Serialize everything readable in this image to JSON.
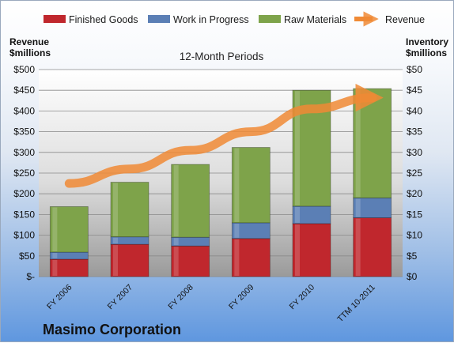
{
  "chart_data": {
    "type": "bar",
    "subtitle": "12-Month Periods",
    "company": "Masimo Corporation",
    "categories": [
      "FY 2006",
      "FY 2007",
      "FY 2008",
      "FY 2009",
      "FY 2010",
      "TTM 10-2011"
    ],
    "series": [
      {
        "name": "Finished Goods",
        "axis": "right",
        "stack": true,
        "color": "#c0272d",
        "values": [
          4.2,
          7.8,
          7.4,
          9.2,
          12.8,
          14.2
        ]
      },
      {
        "name": "Work in Progress",
        "axis": "right",
        "stack": true,
        "color": "#5b7fb5",
        "values": [
          1.7,
          1.8,
          2.1,
          3.8,
          4.2,
          4.8
        ]
      },
      {
        "name": "Raw Materials",
        "axis": "right",
        "stack": true,
        "color": "#7ea34a",
        "values": [
          11.0,
          13.2,
          17.6,
          18.2,
          28.0,
          26.4
        ]
      },
      {
        "name": "Revenue",
        "axis": "left",
        "type": "line",
        "color": "#f08a35",
        "values": [
          225,
          260,
          305,
          350,
          405,
          432
        ]
      }
    ],
    "yaxis_left": {
      "title": [
        "Revenue",
        "$millions"
      ],
      "min": 0,
      "max": 500,
      "step": 50,
      "tick_labels": [
        "$-",
        "$50",
        "$100",
        "$150",
        "$200",
        "$250",
        "$300",
        "$350",
        "$400",
        "$450",
        "$500"
      ]
    },
    "yaxis_right": {
      "title": [
        "Inventory",
        "$millions"
      ],
      "min": 0,
      "max": 50,
      "step": 5,
      "tick_labels": [
        "$0",
        "$5",
        "$10",
        "$15",
        "$20",
        "$25",
        "$30",
        "$35",
        "$40",
        "$45",
        "$50"
      ]
    },
    "grid": true,
    "legend": "top"
  }
}
